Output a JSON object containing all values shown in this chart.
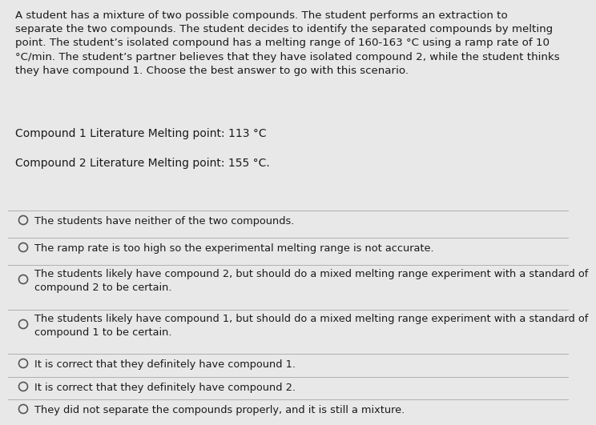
{
  "background_color": "#e8e8e8",
  "text_color": "#1a1a1a",
  "paragraph": "A student has a mixture of two possible compounds. The student performs an extraction to\nseparate the two compounds. The student decides to identify the separated compounds by melting\npoint. The student’s isolated compound has a melting range of 160-163 °C using a ramp rate of 10\n°C/min. The student’s partner believes that they have isolated compound 2, while the student thinks\nthey have compound 1. Choose the best answer to go with this scenario.",
  "compound1": "Compound 1 Literature Melting point: 113 °C",
  "compound2": "Compound 2 Literature Melting point: 155 °C.",
  "options": [
    "The students have neither of the two compounds.",
    "The ramp rate is too high so the experimental melting range is not accurate.",
    "The students likely have compound 2, but should do a mixed melting range experiment with a standard of\ncompound 2 to be certain.",
    "The students likely have compound 1, but should do a mixed melting range experiment with a standard of\ncompound 1 to be certain.",
    "It is correct that they definitely have compound 1.",
    "It is correct that they definitely have compound 2.",
    "They did not separate the compounds properly, and it is still a mixture."
  ],
  "sep_color": "#b0b0b0",
  "circle_color": "#555555",
  "font_size_para": 9.6,
  "font_size_compound": 10.0,
  "font_size_option": 9.3
}
